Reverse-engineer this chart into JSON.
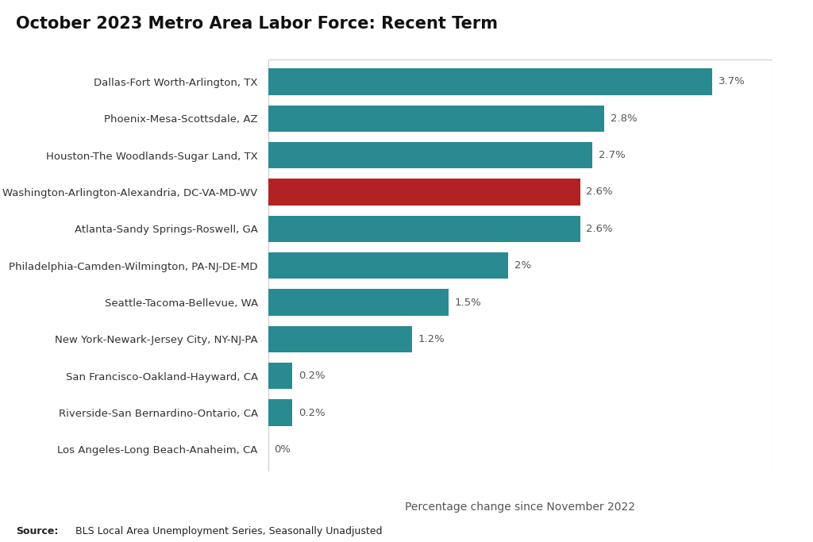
{
  "title": "October 2023 Metro Area Labor Force: Recent Term",
  "categories": [
    "Dallas-Fort Worth-Arlington, TX",
    "Phoenix-Mesa-Scottsdale, AZ",
    "Houston-The Woodlands-Sugar Land, TX",
    "Washington-Arlington-Alexandria, DC-VA-MD-WV",
    "Atlanta-Sandy Springs-Roswell, GA",
    "Philadelphia-Camden-Wilmington, PA-NJ-DE-MD",
    "Seattle-Tacoma-Bellevue, WA",
    "New York-Newark-Jersey City, NY-NJ-PA",
    "San Francisco-Oakland-Hayward, CA",
    "Riverside-San Bernardino-Ontario, CA",
    "Los Angeles-Long Beach-Anaheim, CA"
  ],
  "values": [
    3.7,
    2.8,
    2.7,
    2.6,
    2.6,
    2.0,
    1.5,
    1.2,
    0.2,
    0.2,
    0.0
  ],
  "labels": [
    "3.7%",
    "2.8%",
    "2.7%",
    "2.6%",
    "2.6%",
    "2%",
    "1.5%",
    "1.2%",
    "0.2%",
    "0.2%",
    "0%"
  ],
  "colors": [
    "#2a8a92",
    "#2a8a92",
    "#2a8a92",
    "#b22222",
    "#2a8a92",
    "#2a8a92",
    "#2a8a92",
    "#2a8a92",
    "#2a8a92",
    "#2a8a92",
    "#2a8a92"
  ],
  "xlabel": "Percentage change since November 2022",
  "source_bold": "Source:",
  "source_text": " BLS Local Area Unemployment Series, Seasonally Unadjusted",
  "background_color": "#ffffff",
  "chart_bg": "#ffffff",
  "title_fontsize": 15,
  "label_fontsize": 9.5,
  "tick_fontsize": 9.5,
  "xlabel_fontsize": 10,
  "xlim": [
    0,
    4.2
  ],
  "bar_height": 0.72
}
